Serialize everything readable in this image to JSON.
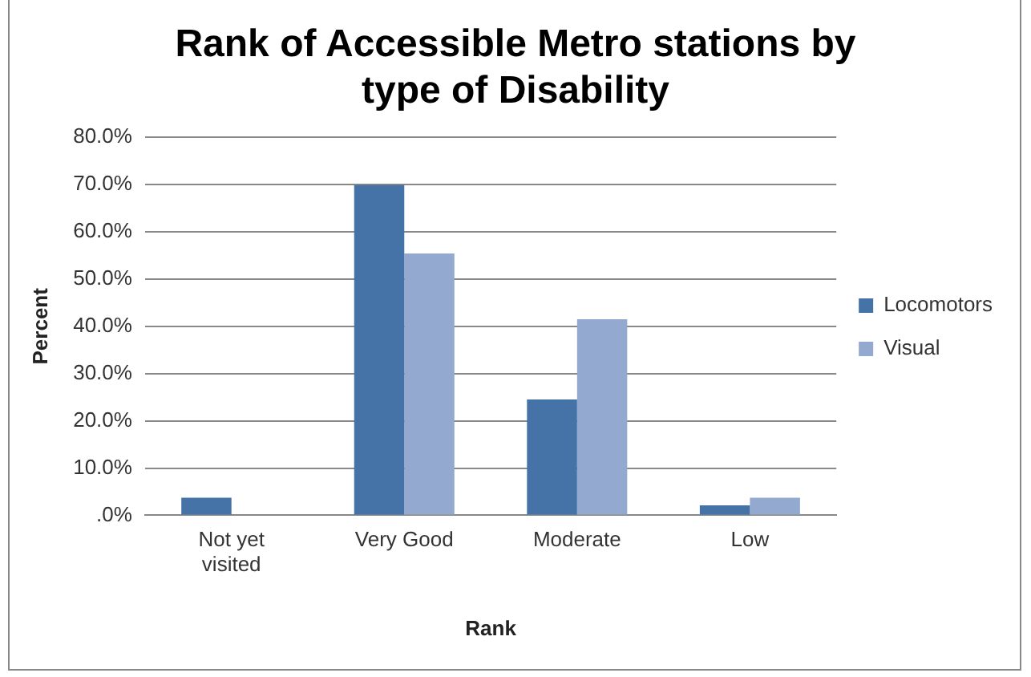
{
  "chart_data": {
    "type": "bar",
    "title": "Rank of Accessible Metro stations by type of Disability",
    "xlabel": "Rank",
    "ylabel": "Percent",
    "categories": [
      "Not yet visited",
      "Very Good",
      "Moderate",
      "Low"
    ],
    "series": [
      {
        "name": "Locomotors",
        "color": "#4572a7",
        "values": [
          3.7,
          69.9,
          24.5,
          2.1
        ]
      },
      {
        "name": "Visual",
        "color": "#93a9cf",
        "values": [
          0,
          55.4,
          41.5,
          3.7
        ]
      }
    ],
    "ylim": [
      0,
      80
    ],
    "yticks": [
      {
        "value": 0,
        "label": ".0%"
      },
      {
        "value": 10,
        "label": "10.0%"
      },
      {
        "value": 20,
        "label": "20.0%"
      },
      {
        "value": 30,
        "label": "30.0%"
      },
      {
        "value": 40,
        "label": "40.0%"
      },
      {
        "value": 50,
        "label": "50.0%"
      },
      {
        "value": 60,
        "label": "60.0%"
      },
      {
        "value": 70,
        "label": "70.0%"
      },
      {
        "value": 80,
        "label": "80.0%"
      }
    ],
    "grid": "y",
    "legend": "right"
  }
}
